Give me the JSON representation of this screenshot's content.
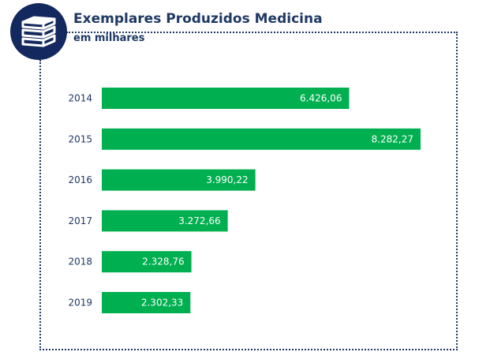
{
  "header": {
    "title": "Exemplares Produzidos Medicina",
    "subtitle": "em milhares",
    "icon": "books-stack-icon"
  },
  "colors": {
    "bar": "#00b050",
    "text": "#1f3864",
    "badge": "#13285e",
    "value_label": "#ffffff"
  },
  "chart_data": {
    "type": "bar",
    "orientation": "horizontal",
    "title": "Exemplares Produzidos Medicina",
    "subtitle": "em milhares",
    "xlabel": "",
    "ylabel": "",
    "categories": [
      "2014",
      "2015",
      "2016",
      "2017",
      "2018",
      "2019"
    ],
    "values": [
      6426.06,
      8282.27,
      3990.22,
      3272.66,
      2328.76,
      2302.33
    ],
    "value_labels": [
      "6.426,06",
      "8.282,27",
      "3.990,22",
      "3.272,66",
      "2.328,76",
      "2.302,33"
    ],
    "xlim": [
      0,
      8282.27
    ],
    "grid": false,
    "legend": "none",
    "data_labels": "inside-end"
  }
}
